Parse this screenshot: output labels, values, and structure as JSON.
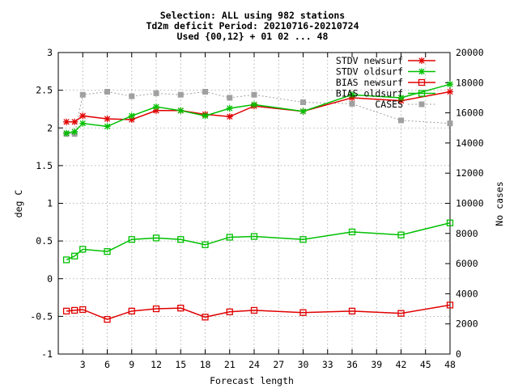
{
  "chart_data": {
    "type": "line",
    "title_lines": [
      "Selection: ALL using   982 stations",
      "Td2m deficit   Period: 20210716-20210724",
      "Used {00,12} + 01 02 ... 48"
    ],
    "xlabel": "Forecast length",
    "ylabel": "deg C",
    "y2label": "No cases",
    "xlim": [
      0,
      48
    ],
    "ylim": [
      -1,
      3
    ],
    "y2lim": [
      0,
      20000
    ],
    "x_ticks": [
      3,
      6,
      9,
      12,
      15,
      18,
      21,
      24,
      27,
      30,
      33,
      36,
      39,
      42,
      45,
      48
    ],
    "y_ticks": [
      -1,
      -0.5,
      0,
      0.5,
      1,
      1.5,
      2,
      2.5,
      3
    ],
    "y_tick_labels": [
      "-1",
      "-0.5",
      "0",
      "0.5",
      "1",
      "1.5",
      "2",
      "2.5",
      "3"
    ],
    "y2_ticks": [
      0,
      2000,
      4000,
      6000,
      8000,
      10000,
      12000,
      14000,
      16000,
      18000,
      20000
    ],
    "grid": true,
    "legend_position": "top-right",
    "x": [
      1,
      2,
      3,
      6,
      9,
      12,
      15,
      18,
      21,
      24,
      30,
      36,
      42,
      48
    ],
    "series": [
      {
        "name": "STDV newsurf",
        "color": "#e00000",
        "marker": "star",
        "values": [
          2.08,
          2.08,
          2.16,
          2.12,
          2.11,
          2.23,
          2.23,
          2.18,
          2.15,
          2.29,
          2.22,
          2.4,
          2.36,
          2.48
        ]
      },
      {
        "name": "STDV oldsurf",
        "color": "#00c000",
        "marker": "star",
        "values": [
          1.93,
          1.95,
          2.06,
          2.02,
          2.16,
          2.28,
          2.23,
          2.16,
          2.26,
          2.31,
          2.22,
          2.44,
          2.4,
          2.58
        ]
      },
      {
        "name": "BIAS newsurf",
        "color": "#e00000",
        "marker": "square",
        "values": [
          -0.43,
          -0.42,
          -0.41,
          -0.54,
          -0.43,
          -0.4,
          -0.39,
          -0.51,
          -0.44,
          -0.42,
          -0.45,
          -0.43,
          -0.46,
          -0.35
        ]
      },
      {
        "name": "BIAS oldsurf",
        "color": "#00c000",
        "marker": "square",
        "values": [
          0.25,
          0.3,
          0.39,
          0.36,
          0.52,
          0.54,
          0.52,
          0.45,
          0.55,
          0.56,
          0.52,
          0.62,
          0.58,
          0.74
        ]
      },
      {
        "name": "CASES",
        "color": "#a0a0a0",
        "marker": "filled-square",
        "axis": "y2",
        "values": [
          14600,
          14600,
          17200,
          17400,
          17100,
          17300,
          17200,
          17400,
          17000,
          17200,
          16700,
          16600,
          15500,
          15300
        ]
      }
    ]
  }
}
